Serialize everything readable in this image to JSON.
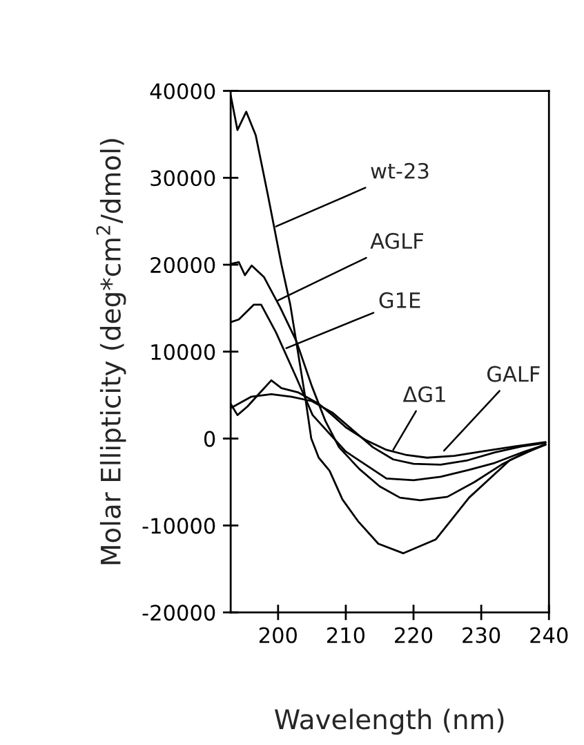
{
  "chart_data": {
    "type": "line",
    "xlabel": "Wavelength (nm)",
    "ylabel": "Molar Ellipticity (deg*cm$^{2}$/dmol)",
    "xlim": [
      193,
      240
    ],
    "xticks": [
      200,
      210,
      220,
      230,
      240
    ],
    "ylim": [
      -20000,
      40000
    ],
    "yticks": [
      -20000,
      -10000,
      0,
      10000,
      20000,
      30000,
      40000
    ],
    "grid": false,
    "legend": false,
    "marker": "none",
    "line_style": "solid",
    "series": [
      {
        "color": "#000000",
        "x": [
          193,
          194,
          195.3,
          196.7,
          198.5,
          200.5,
          201.8,
          204,
          204.9,
          206,
          207.6,
          209.5,
          211.8,
          214.8,
          218.5,
          223.3,
          228.2,
          234.2,
          239
        ],
        "values": [
          39500,
          35500,
          37600,
          34900,
          28000,
          20000,
          15400,
          4800,
          0,
          -2200,
          -3700,
          -7000,
          -9500,
          -12100,
          -13200,
          -11600,
          -6800,
          -2500,
          -800
        ]
      },
      {
        "color": "#000000",
        "x": [
          193,
          194.2,
          195.1,
          196.1,
          197.9,
          200.3,
          202.7,
          205,
          207,
          209,
          212,
          215,
          218,
          221,
          225,
          229,
          233,
          236,
          239.5
        ],
        "values": [
          20100,
          20300,
          18800,
          19900,
          18600,
          15100,
          11200,
          6000,
          2000,
          -1000,
          -3500,
          -5500,
          -6800,
          -7100,
          -6700,
          -5000,
          -3000,
          -1800,
          -700
        ]
      },
      {
        "color": "#000000",
        "x": [
          193,
          194.2,
          196.4,
          197.5,
          199.7,
          202.7,
          205.1,
          210,
          216,
          220,
          224,
          228.2,
          232,
          236,
          239.5
        ],
        "values": [
          13400,
          13700,
          15400,
          15400,
          12200,
          7000,
          2700,
          -1500,
          -4600,
          -4800,
          -4400,
          -3600,
          -2800,
          -1600,
          -700
        ]
      },
      {
        "color": "#000000",
        "x": [
          193,
          194,
          195.5,
          197,
          199,
          200.5,
          203,
          206,
          208,
          210,
          213,
          216,
          219,
          222,
          226,
          230,
          235,
          239.5
        ],
        "values": [
          4000,
          2700,
          3700,
          5000,
          6700,
          5800,
          5300,
          4000,
          2700,
          1300,
          -200,
          -1300,
          -1900,
          -2200,
          -2000,
          -1500,
          -900,
          -400
        ]
      },
      {
        "color": "#000000",
        "x": [
          193,
          196,
          199,
          202,
          205,
          208,
          211,
          214,
          217,
          220,
          224,
          228,
          232,
          236,
          239.5
        ],
        "values": [
          3500,
          4800,
          5100,
          4800,
          4300,
          3000,
          1000,
          -1000,
          -2400,
          -2900,
          -3000,
          -2500,
          -1600,
          -900,
          -500
        ]
      }
    ],
    "annotations": [
      {
        "text": "wt-23",
        "x": 199.7,
        "y": 24400
      },
      {
        "text": "AGLF",
        "x": 200,
        "y": 15900
      },
      {
        "text": "G1E",
        "x": 201.2,
        "y": 10400
      },
      {
        "text": "ΔG1",
        "x": 217,
        "y": -1300
      },
      {
        "text": "GALF",
        "x": 224.5,
        "y": -1400
      }
    ]
  }
}
